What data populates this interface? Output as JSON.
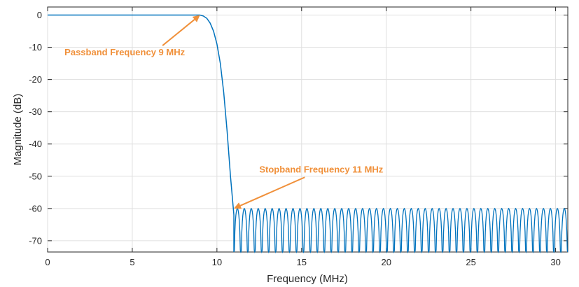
{
  "chart_data": {
    "type": "line",
    "title": "",
    "xlabel": "Frequency (MHz)",
    "ylabel": "Magnitude (dB)",
    "xlim": [
      0,
      30.72
    ],
    "ylim": [
      -73.5,
      2.5
    ],
    "xticks": [
      0,
      5,
      10,
      15,
      20,
      25,
      30
    ],
    "yticks": [
      0,
      -10,
      -20,
      -30,
      -40,
      -50,
      -60,
      -70
    ],
    "xtick_labels": [
      "0",
      "5",
      "10",
      "15",
      "20",
      "25",
      "30"
    ],
    "ytick_labels": [
      "0",
      "-10",
      "-20",
      "-30",
      "-40",
      "-50",
      "-60",
      "-70"
    ],
    "grid": true,
    "legend": "none",
    "series": [
      {
        "color": "#0072bd",
        "passband": {
          "x": [
            0,
            9.0
          ],
          "y": [
            0,
            0
          ]
        },
        "transition": {
          "x": [
            9.0,
            9.2,
            9.4,
            9.6,
            9.8,
            10.0,
            10.2,
            10.4,
            10.6,
            10.8,
            11.0
          ],
          "y": [
            0,
            -0.3,
            -1.0,
            -2.5,
            -5.0,
            -9.0,
            -15.0,
            -24.0,
            -36.0,
            -50.0,
            -62.0
          ]
        },
        "stopband": {
          "x_start": 11.0,
          "x_end": 30.72,
          "lobe_peak_db": -60,
          "lobe_count": 48
        }
      }
    ],
    "annotations": [
      {
        "text": "Passband Frequency 9 MHz",
        "color": "#f0903a",
        "arrow_to": [
          9.0,
          0
        ],
        "text_at": [
          1.0,
          -12.5
        ]
      },
      {
        "text": "Stopband Frequency 11 MHz",
        "color": "#f0903a",
        "arrow_to": [
          11.0,
          -60
        ],
        "text_at": [
          12.5,
          -48.8
        ]
      }
    ]
  }
}
